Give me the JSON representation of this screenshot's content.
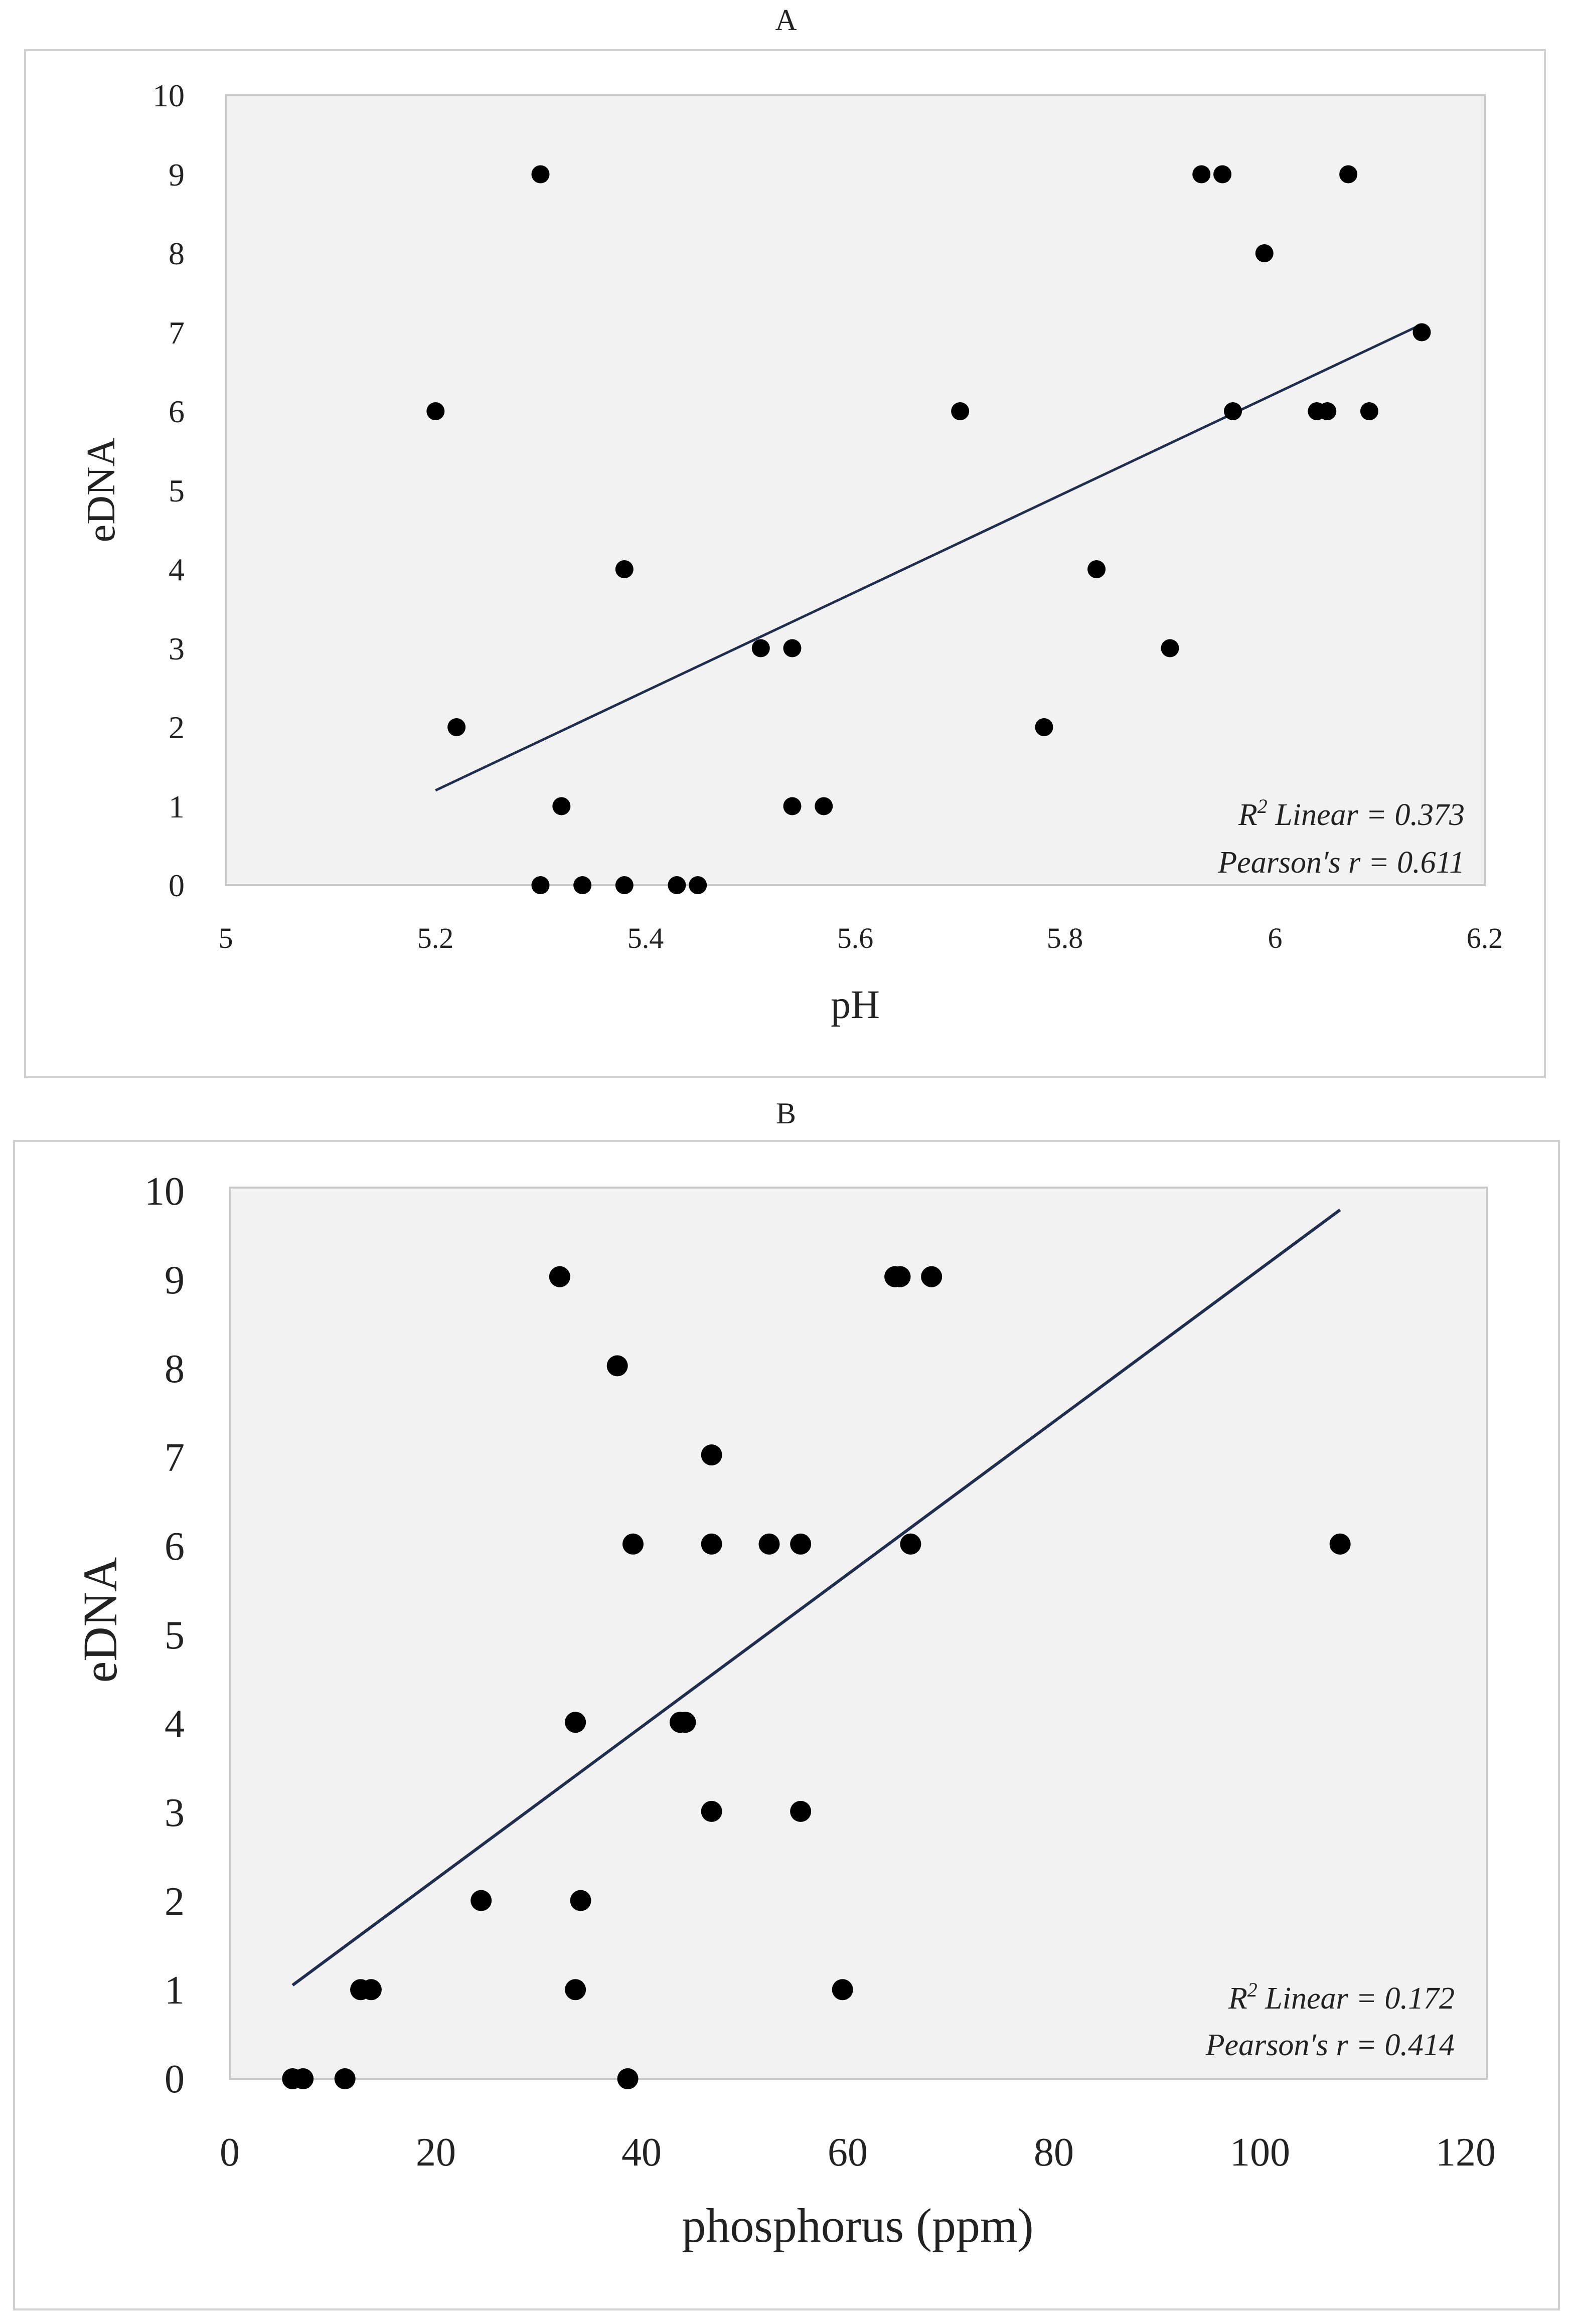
{
  "colors": {
    "plot_background": "#f2f2f2",
    "plot_border": "#c8c8c8",
    "frame_border": "#d0d0d0",
    "points": "#000000",
    "trendline": "#1f2d4f",
    "text": "#222222"
  },
  "chart_data": [
    {
      "type": "scatter",
      "panel_label": "A",
      "title": "A",
      "xlabel": "pH",
      "ylabel": "eDNA",
      "xlim": [
        5,
        6.2
      ],
      "ylim": [
        0,
        10
      ],
      "x_ticks": [
        "5",
        "5.2",
        "5.4",
        "5.6",
        "5.8",
        "6",
        "6.2"
      ],
      "y_ticks": [
        "0",
        "1",
        "2",
        "3",
        "4",
        "5",
        "6",
        "7",
        "8",
        "9",
        "10"
      ],
      "grid": false,
      "legend": "none",
      "points": [
        {
          "x": 5.2,
          "y": 6
        },
        {
          "x": 5.22,
          "y": 2
        },
        {
          "x": 5.3,
          "y": 9
        },
        {
          "x": 5.3,
          "y": 0
        },
        {
          "x": 5.32,
          "y": 1
        },
        {
          "x": 5.34,
          "y": 0
        },
        {
          "x": 5.38,
          "y": 4
        },
        {
          "x": 5.38,
          "y": 0
        },
        {
          "x": 5.43,
          "y": 0
        },
        {
          "x": 5.45,
          "y": 0
        },
        {
          "x": 5.51,
          "y": 3
        },
        {
          "x": 5.54,
          "y": 3
        },
        {
          "x": 5.54,
          "y": 1
        },
        {
          "x": 5.57,
          "y": 1
        },
        {
          "x": 5.7,
          "y": 6
        },
        {
          "x": 5.78,
          "y": 2
        },
        {
          "x": 5.83,
          "y": 4
        },
        {
          "x": 5.9,
          "y": 3
        },
        {
          "x": 5.93,
          "y": 9
        },
        {
          "x": 5.95,
          "y": 9
        },
        {
          "x": 5.96,
          "y": 6
        },
        {
          "x": 5.99,
          "y": 8
        },
        {
          "x": 6.04,
          "y": 6
        },
        {
          "x": 6.05,
          "y": 6
        },
        {
          "x": 6.07,
          "y": 9
        },
        {
          "x": 6.09,
          "y": 6
        },
        {
          "x": 6.14,
          "y": 7
        }
      ],
      "trendline": {
        "x": [
          5.2,
          6.14
        ],
        "y": [
          1.2,
          7.1
        ]
      },
      "annotations": {
        "r2_prefix": "R",
        "r2_sup": "2",
        "r2_rest": " Linear = 0.373",
        "pearson": "Pearson′s r = 0.611"
      }
    },
    {
      "type": "scatter",
      "panel_label": "B",
      "title": "B",
      "xlabel": "phosphorus (ppm)",
      "ylabel": "eDNA",
      "xlim": [
        0,
        120
      ],
      "ylim": [
        0,
        10
      ],
      "x_ticks": [
        "0",
        "20",
        "40",
        "60",
        "80",
        "100",
        "120"
      ],
      "y_ticks": [
        "0",
        "1",
        "2",
        "3",
        "4",
        "5",
        "6",
        "7",
        "8",
        "9",
        "10"
      ],
      "grid": false,
      "legend": "none",
      "points": [
        {
          "x": 6,
          "y": 0
        },
        {
          "x": 7,
          "y": 0
        },
        {
          "x": 11,
          "y": 0
        },
        {
          "x": 38,
          "y": 0
        },
        {
          "x": 12.5,
          "y": 1
        },
        {
          "x": 13.5,
          "y": 1
        },
        {
          "x": 33,
          "y": 1
        },
        {
          "x": 58.5,
          "y": 1
        },
        {
          "x": 24,
          "y": 2
        },
        {
          "x": 33.5,
          "y": 2
        },
        {
          "x": 46,
          "y": 3
        },
        {
          "x": 54.5,
          "y": 3
        },
        {
          "x": 33,
          "y": 4
        },
        {
          "x": 43,
          "y": 4
        },
        {
          "x": 43.5,
          "y": 4
        },
        {
          "x": 38.5,
          "y": 6
        },
        {
          "x": 46,
          "y": 6
        },
        {
          "x": 51.5,
          "y": 6
        },
        {
          "x": 54.5,
          "y": 6
        },
        {
          "x": 65,
          "y": 6
        },
        {
          "x": 106,
          "y": 6
        },
        {
          "x": 46,
          "y": 7
        },
        {
          "x": 37,
          "y": 8
        },
        {
          "x": 31.5,
          "y": 9
        },
        {
          "x": 63.5,
          "y": 9
        },
        {
          "x": 64,
          "y": 9
        },
        {
          "x": 67,
          "y": 9
        }
      ],
      "trendline": {
        "x": [
          6,
          106
        ],
        "y": [
          1.05,
          9.75
        ]
      },
      "annotations": {
        "r2_prefix": "R",
        "r2_sup": "2",
        "r2_rest": "  Linear = 0.172",
        "pearson": "Pearson′s r = 0.414"
      }
    }
  ]
}
